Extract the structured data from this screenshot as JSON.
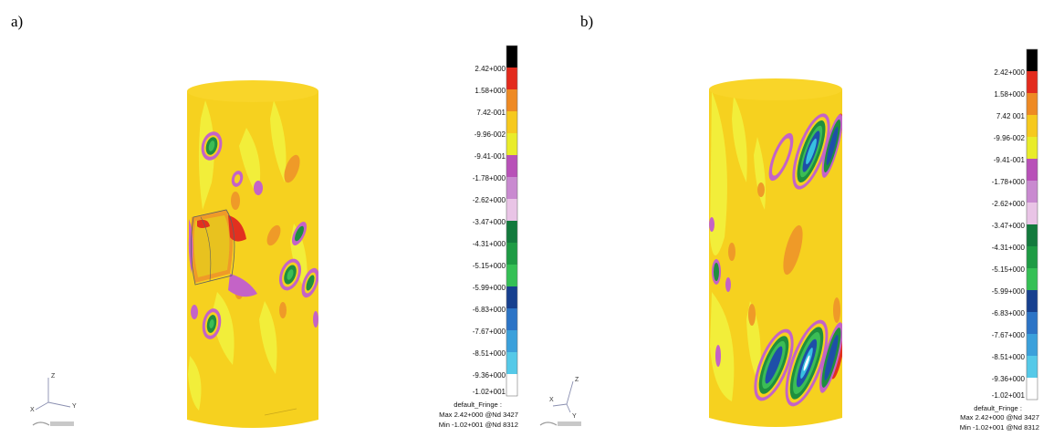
{
  "colors": {
    "background": "#ffffff",
    "cylinder_base": "#f6d11f",
    "cylinder_top": "#f9d529",
    "light_yellow": "#f2ee3a",
    "orange": "#ef9a28",
    "red": "#e2301f",
    "magenta": "#c463c7",
    "green": "#1f8f3e",
    "light_green": "#3bbd55",
    "blue": "#1e4fa8",
    "cyan": "#38c0e0",
    "white": "#ffffff"
  },
  "colorbar": {
    "tick_labels": [
      "2.42+000",
      "1.58+000",
      "7.42-001",
      "-9.96-002",
      "-9.41-001",
      "-1.78+000",
      "-2.62+000",
      "-3.47+000",
      "-4.31+000",
      "-5.15+000",
      "-5.99+000",
      "-6.83+000",
      "-7.67+000",
      "-8.51+000",
      "-9.36+000",
      "-1.02+001"
    ],
    "segment_colors": [
      "#000000",
      "#e32b1d",
      "#ee8a24",
      "#f6c91e",
      "#e9ec2a",
      "#b851b8",
      "#c98ad0",
      "#e9c4e6",
      "#137a3d",
      "#1e9b44",
      "#35c055",
      "#17408f",
      "#2c74c6",
      "#3ba0db",
      "#55c9e8",
      "#ffffff"
    ]
  },
  "panels": [
    {
      "label": "a)",
      "colorbar_ticks": [
        "2.42+000",
        "1.58+000",
        "7.42-001",
        "-9.96-002",
        "-9.41-001",
        "-1.78+000",
        "-2.62+000",
        "-3.47+000",
        "-4.31+000",
        "-5.15+000",
        "-5.99+000",
        "-6.83+000",
        "-7.67+000",
        "-8.51+000",
        "-9.36+000",
        "-1.02+001"
      ],
      "fringe": {
        "title": "default_Fringe :",
        "max": "Max 2.42+000 @Nd 3427",
        "min": "Min -1.02+001 @Nd 8312"
      },
      "triad": {
        "z": "Z",
        "x": "X",
        "y": "Y"
      }
    },
    {
      "label": "b)",
      "colorbar_ticks": [
        "2.42+000",
        "1.58+000",
        "7.42 001",
        "-9.96-002",
        "-9.41-001",
        "-1.78+000",
        "-2.62+000",
        "-3.47+000",
        "-4.31+000",
        "-5.15+000",
        "-5.99+000",
        "-6.83+000",
        "-7.67+000",
        "-8.51+000",
        "-9.36+000",
        "-1.02+001"
      ],
      "fringe": {
        "title": "default_Fringe :",
        "max": "Max 2.42+000 @Nd 3427",
        "min": "Min -1.02+001 @Nd 8312"
      },
      "triad": {
        "z": "Z",
        "x": "X",
        "y": "Y"
      }
    }
  ]
}
